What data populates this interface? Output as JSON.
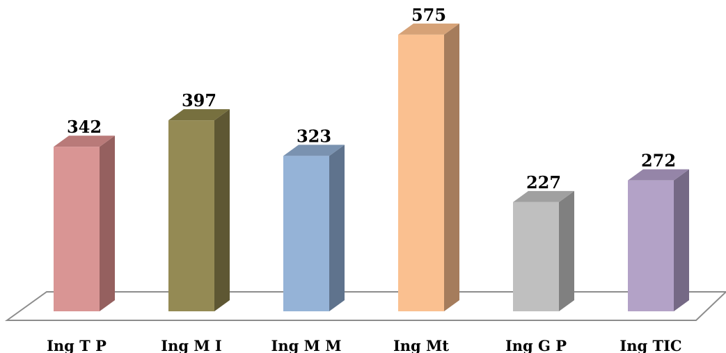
{
  "chart_data": {
    "type": "bar",
    "categories": [
      "Ing T P",
      "Ing M I",
      "Ing M M",
      "Ing Mt",
      "Ing G P",
      "Ing TIC"
    ],
    "values": [
      342,
      397,
      323,
      575,
      227,
      272
    ],
    "title": "",
    "xlabel": "",
    "ylabel": "",
    "ylim": [
      0,
      600
    ],
    "grid": false,
    "legend": "none",
    "style": "3d-column",
    "colors": {
      "fronts": [
        "#D99594",
        "#948A54",
        "#95B3D7",
        "#FAC090",
        "#BFBFBF",
        "#B3A2C7"
      ],
      "sides": [
        "#95605F",
        "#5E5733",
        "#5F738D",
        "#A57C5C",
        "#808080",
        "#756985"
      ],
      "tops": [
        "#B97A79",
        "#77703F",
        "#7A92B0",
        "#D6A277",
        "#A0A0A0",
        "#9585A8"
      ],
      "floor_stroke": "#8C8C8C"
    }
  }
}
